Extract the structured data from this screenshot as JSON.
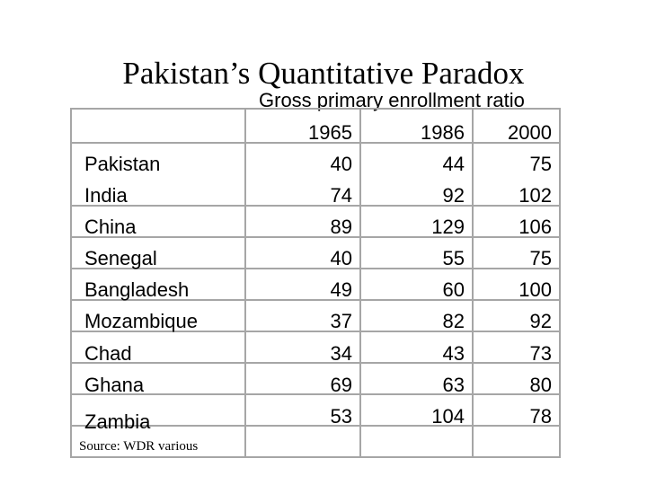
{
  "title": "Pakistan’s Quantitative Paradox",
  "subtitle": "Gross primary enrollment ratio",
  "years": [
    "1965",
    "1986",
    "2000"
  ],
  "rows": [
    {
      "country": "Pakistan",
      "v1965": "40",
      "v1986": "44",
      "v2000": "75"
    },
    {
      "country": "India",
      "v1965": "74",
      "v1986": "92",
      "v2000": "102"
    },
    {
      "country": "China",
      "v1965": "89",
      "v1986": "129",
      "v2000": "106"
    },
    {
      "country": "Senegal",
      "v1965": "40",
      "v1986": "55",
      "v2000": "75"
    },
    {
      "country": "Bangladesh",
      "v1965": "49",
      "v1986": "60",
      "v2000": "100"
    },
    {
      "country": "Mozambique",
      "v1965": "37",
      "v1986": "82",
      "v2000": "92"
    },
    {
      "country": "Chad",
      "v1965": "34",
      "v1986": "43",
      "v2000": "73"
    },
    {
      "country": "Ghana",
      "v1965": "69",
      "v1986": "63",
      "v2000": "80"
    },
    {
      "country": "Zambia",
      "v1965": "53",
      "v1986": "104",
      "v2000": "78"
    }
  ],
  "source": "Source: WDR various",
  "colors": {
    "grid": "#a6a6a6",
    "text": "#000000",
    "background": "#ffffff"
  }
}
